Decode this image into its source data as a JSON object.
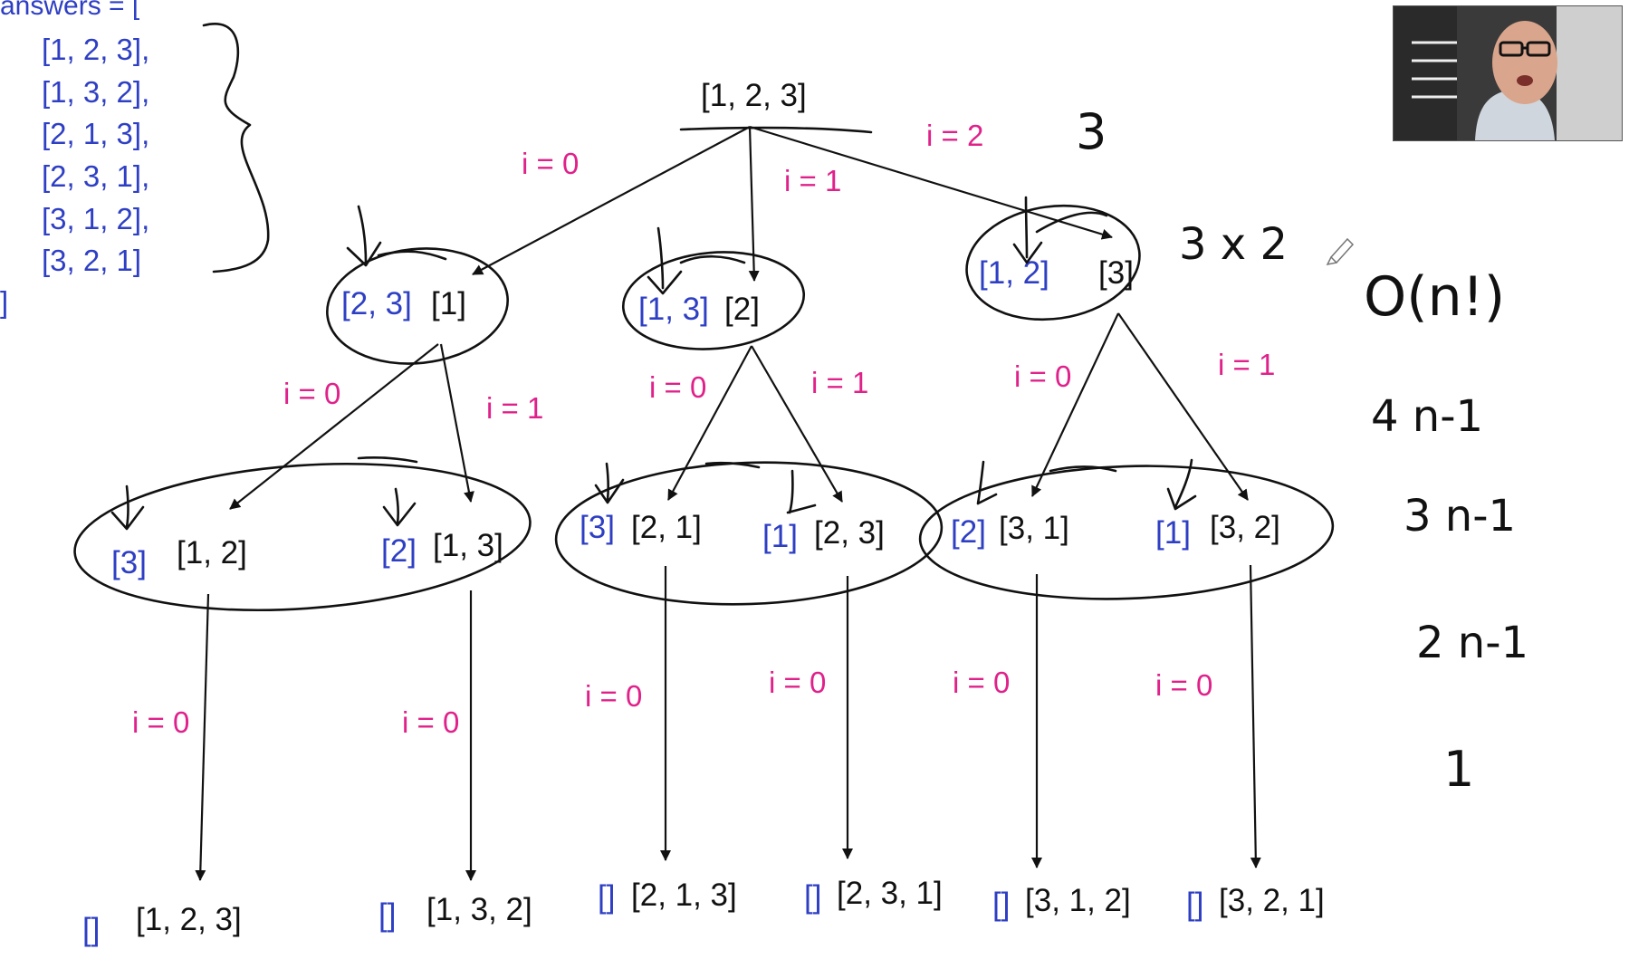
{
  "answers_code": {
    "header": "answers = [",
    "items": [
      "[1, 2, 3],",
      "[1, 3, 2],",
      "[2, 1, 3],",
      "[2, 3, 1],",
      "[3, 1, 2],",
      "[3, 2, 1]"
    ],
    "close": "]"
  },
  "tree": {
    "root": "[1, 2, 3]",
    "level1": [
      {
        "remaining": "[2, 3]",
        "perm": "[1]"
      },
      {
        "remaining": "[1, 3]",
        "perm": "[2]"
      },
      {
        "remaining": "[1, 2]",
        "perm": "[3]"
      }
    ],
    "level2": [
      {
        "remaining": "[3]",
        "perm": "[1, 2]"
      },
      {
        "remaining": "[2]",
        "perm": "[1, 3]"
      },
      {
        "remaining": "[3]",
        "perm": "[2, 1]"
      },
      {
        "remaining": "[1]",
        "perm": "[2, 3]"
      },
      {
        "remaining": "[2]",
        "perm": "[3, 1]"
      },
      {
        "remaining": "[1]",
        "perm": "[3, 2]"
      }
    ],
    "leaves": [
      {
        "remaining": "[]",
        "perm": "[1, 2, 3]"
      },
      {
        "remaining": "[]",
        "perm": "[1, 3, 2]"
      },
      {
        "remaining": "[]",
        "perm": "[2, 1, 3]"
      },
      {
        "remaining": "[]",
        "perm": "[2, 3, 1]"
      },
      {
        "remaining": "[]",
        "perm": "[3, 1, 2]"
      },
      {
        "remaining": "[]",
        "perm": "[3, 2, 1]"
      }
    ],
    "edge_labels": {
      "root": [
        "i = 0",
        "i = 1",
        "i = 2"
      ],
      "level1": [
        "i = 0",
        "i = 1",
        "i = 0",
        "i = 1",
        "i = 0",
        "i = 1"
      ],
      "level2": [
        "i = 0",
        "i = 0",
        "i = 0",
        "i = 0",
        "i = 0",
        "i = 0"
      ]
    }
  },
  "annotations": {
    "count_3": "3",
    "count_3x2": "3 x 2",
    "complexity": "O(n!)",
    "n_minus_1_rows": [
      "4  n-1",
      "3  n-1",
      "2  n-1",
      "1"
    ]
  },
  "colors": {
    "blue": "#2e3fc4",
    "black": "#111111",
    "pink": "#e0218a"
  },
  "webcam": {
    "icon": "presenter-video-feed"
  }
}
